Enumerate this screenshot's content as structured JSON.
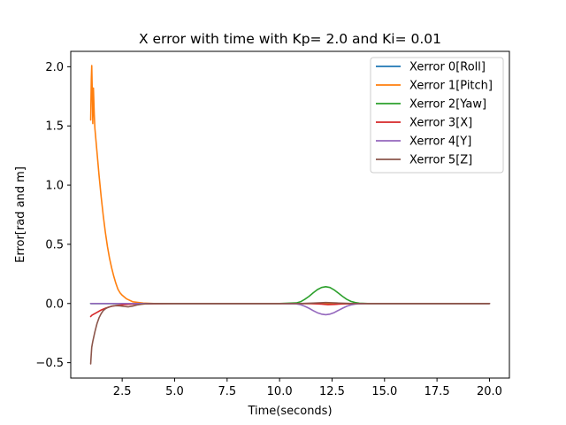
{
  "chart_data": {
    "type": "line",
    "title": "X error with time with Kp= 2.0 and Ki= 0.01",
    "xlabel": "Time(seconds)",
    "ylabel": "Error[rad and m]",
    "xlim": [
      0.05,
      20.95
    ],
    "ylim": [
      -0.63,
      2.13
    ],
    "xticks": [
      2.5,
      5.0,
      7.5,
      10.0,
      12.5,
      15.0,
      17.5,
      20.0
    ],
    "xtick_labels": [
      "2.5",
      "5.0",
      "7.5",
      "10.0",
      "12.5",
      "15.0",
      "17.5",
      "20.0"
    ],
    "yticks": [
      -0.5,
      0.0,
      0.5,
      1.0,
      1.5,
      2.0
    ],
    "ytick_labels": [
      "−0.5",
      "0.0",
      "0.5",
      "1.0",
      "1.5",
      "2.0"
    ],
    "grid": false,
    "legend_position": "top-right",
    "series": [
      {
        "name": "Xerror 0[Roll]",
        "color": "#1f77b4",
        "points": [
          [
            1.0,
            0.0
          ],
          [
            1.5,
            0.0
          ],
          [
            2.0,
            0.0
          ],
          [
            3.0,
            0.0
          ],
          [
            5.0,
            0.0
          ],
          [
            8.0,
            0.0
          ],
          [
            10.5,
            0.0
          ],
          [
            11.5,
            0.0
          ],
          [
            12.2,
            0.0
          ],
          [
            13.0,
            0.0
          ],
          [
            15.0,
            0.0
          ],
          [
            17.5,
            0.0
          ],
          [
            20.0,
            0.0
          ]
        ]
      },
      {
        "name": "Xerror 1[Pitch]",
        "color": "#ff7f0e",
        "points": [
          [
            1.0,
            1.55
          ],
          [
            1.03,
            1.9
          ],
          [
            1.05,
            2.01
          ],
          [
            1.08,
            1.75
          ],
          [
            1.1,
            1.52
          ],
          [
            1.13,
            1.82
          ],
          [
            1.17,
            1.6
          ],
          [
            1.2,
            1.48
          ],
          [
            1.3,
            1.28
          ],
          [
            1.4,
            1.08
          ],
          [
            1.5,
            0.9
          ],
          [
            1.6,
            0.74
          ],
          [
            1.7,
            0.6
          ],
          [
            1.8,
            0.48
          ],
          [
            1.9,
            0.38
          ],
          [
            2.0,
            0.3
          ],
          [
            2.1,
            0.23
          ],
          [
            2.2,
            0.17
          ],
          [
            2.3,
            0.12
          ],
          [
            2.4,
            0.09
          ],
          [
            2.5,
            0.07
          ],
          [
            2.7,
            0.04
          ],
          [
            3.0,
            0.015
          ],
          [
            3.5,
            0.004
          ],
          [
            4.0,
            0.0
          ],
          [
            6.0,
            0.0
          ],
          [
            10.0,
            0.0
          ],
          [
            12.2,
            0.0
          ],
          [
            15.0,
            0.0
          ],
          [
            20.0,
            0.0
          ]
        ]
      },
      {
        "name": "Xerror 2[Yaw]",
        "color": "#2ca02c",
        "points": [
          [
            1.0,
            0.0
          ],
          [
            5.0,
            0.0
          ],
          [
            10.0,
            0.0
          ],
          [
            10.8,
            0.005
          ],
          [
            11.0,
            0.015
          ],
          [
            11.2,
            0.035
          ],
          [
            11.4,
            0.06
          ],
          [
            11.6,
            0.09
          ],
          [
            11.8,
            0.117
          ],
          [
            12.0,
            0.135
          ],
          [
            12.2,
            0.142
          ],
          [
            12.4,
            0.135
          ],
          [
            12.6,
            0.115
          ],
          [
            12.8,
            0.088
          ],
          [
            13.0,
            0.06
          ],
          [
            13.2,
            0.035
          ],
          [
            13.4,
            0.018
          ],
          [
            13.6,
            0.008
          ],
          [
            13.8,
            0.003
          ],
          [
            14.2,
            0.0
          ],
          [
            17.5,
            0.0
          ],
          [
            20.0,
            0.0
          ]
        ]
      },
      {
        "name": "Xerror 3[X]",
        "color": "#d62728",
        "points": [
          [
            1.0,
            -0.11
          ],
          [
            1.05,
            -0.1
          ],
          [
            1.1,
            -0.095
          ],
          [
            1.3,
            -0.075
          ],
          [
            1.5,
            -0.055
          ],
          [
            1.7,
            -0.04
          ],
          [
            1.9,
            -0.028
          ],
          [
            2.1,
            -0.02
          ],
          [
            2.3,
            -0.015
          ],
          [
            2.5,
            -0.011
          ],
          [
            2.8,
            -0.007
          ],
          [
            3.2,
            -0.004
          ],
          [
            3.8,
            -0.002
          ],
          [
            5.0,
            0.0
          ],
          [
            10.0,
            0.0
          ],
          [
            11.5,
            0.0
          ],
          [
            12.0,
            -0.005
          ],
          [
            12.3,
            -0.01
          ],
          [
            12.6,
            -0.008
          ],
          [
            13.0,
            -0.003
          ],
          [
            14.0,
            0.0
          ],
          [
            20.0,
            0.0
          ]
        ]
      },
      {
        "name": "Xerror 4[Y]",
        "color": "#9467bd",
        "points": [
          [
            1.0,
            0.0
          ],
          [
            5.0,
            0.0
          ],
          [
            10.0,
            0.0
          ],
          [
            10.8,
            -0.003
          ],
          [
            11.0,
            -0.01
          ],
          [
            11.2,
            -0.023
          ],
          [
            11.4,
            -0.04
          ],
          [
            11.6,
            -0.06
          ],
          [
            11.8,
            -0.078
          ],
          [
            12.0,
            -0.09
          ],
          [
            12.2,
            -0.095
          ],
          [
            12.4,
            -0.09
          ],
          [
            12.6,
            -0.077
          ],
          [
            12.8,
            -0.058
          ],
          [
            13.0,
            -0.04
          ],
          [
            13.2,
            -0.023
          ],
          [
            13.4,
            -0.012
          ],
          [
            13.6,
            -0.005
          ],
          [
            13.8,
            -0.002
          ],
          [
            14.2,
            0.0
          ],
          [
            17.5,
            0.0
          ],
          [
            20.0,
            0.0
          ]
        ]
      },
      {
        "name": "Xerror 5[Z]",
        "color": "#8c564b",
        "points": [
          [
            1.0,
            -0.51
          ],
          [
            1.02,
            -0.45
          ],
          [
            1.05,
            -0.37
          ],
          [
            1.1,
            -0.32
          ],
          [
            1.2,
            -0.24
          ],
          [
            1.3,
            -0.17
          ],
          [
            1.4,
            -0.12
          ],
          [
            1.5,
            -0.085
          ],
          [
            1.6,
            -0.06
          ],
          [
            1.7,
            -0.045
          ],
          [
            1.8,
            -0.035
          ],
          [
            2.0,
            -0.022
          ],
          [
            2.2,
            -0.018
          ],
          [
            2.4,
            -0.02
          ],
          [
            2.6,
            -0.025
          ],
          [
            2.8,
            -0.028
          ],
          [
            3.0,
            -0.022
          ],
          [
            3.2,
            -0.013
          ],
          [
            3.4,
            -0.007
          ],
          [
            3.6,
            -0.003
          ],
          [
            4.0,
            0.0
          ],
          [
            8.0,
            0.0
          ],
          [
            11.0,
            0.0
          ],
          [
            11.6,
            0.004
          ],
          [
            12.2,
            0.008
          ],
          [
            12.8,
            0.004
          ],
          [
            13.5,
            0.0
          ],
          [
            20.0,
            0.0
          ]
        ]
      }
    ]
  }
}
